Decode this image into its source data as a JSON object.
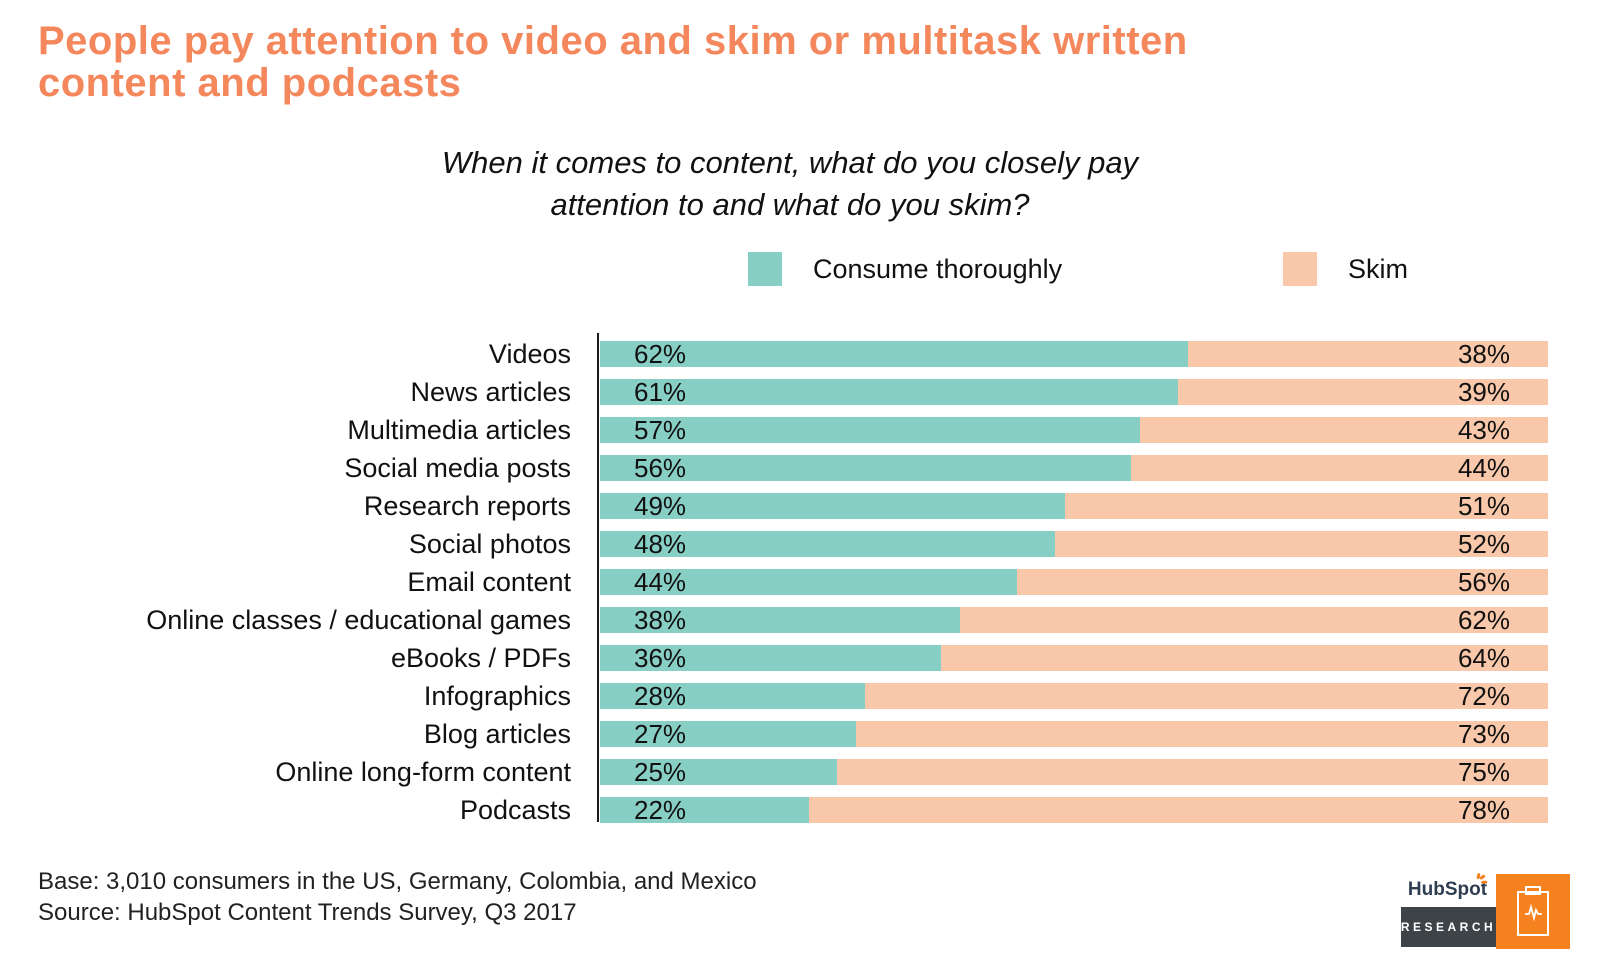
{
  "title": {
    "line1": "People pay attention to video and skim or multitask written",
    "line2": "content and podcasts"
  },
  "subtitle": {
    "line1": "When it comes to content, what do you closely pay",
    "line2": "attention to and what do you skim?"
  },
  "chart_data": {
    "type": "bar",
    "orientation": "horizontal",
    "stacked": true,
    "title": "When it comes to content, what do you closely pay attention to and what do you skim?",
    "value_format": "percent",
    "xlim": [
      0,
      100
    ],
    "legend_position": "top",
    "grid": false,
    "categories": [
      "Videos",
      "News articles",
      "Multimedia articles",
      "Social media posts",
      "Research reports",
      "Social photos",
      "Email content",
      "Online classes / educational games",
      "eBooks / PDFs",
      "Infographics",
      "Blog articles",
      "Online long-form content",
      "Podcasts"
    ],
    "series": [
      {
        "name": "Consume thoroughly",
        "color": "#87CEC5",
        "values": [
          62,
          61,
          57,
          56,
          49,
          48,
          44,
          38,
          36,
          28,
          27,
          25,
          22
        ]
      },
      {
        "name": "Skim",
        "color": "#F9C7A9",
        "values": [
          38,
          39,
          43,
          44,
          51,
          52,
          56,
          62,
          64,
          72,
          73,
          75,
          78
        ]
      }
    ]
  },
  "footer": {
    "base": "Base: 3,010 consumers in the US, Germany, Colombia, and Mexico",
    "source": "Source: HubSpot Content Trends Survey, Q3 2017"
  },
  "logo": {
    "wordmark_pre": "HubSp",
    "wordmark_o": "o",
    "wordmark_post": "t",
    "research_label": "RESEARCH"
  },
  "colors": {
    "title": "#F4875C",
    "consume": "#87CEC5",
    "skim": "#F9C7A9",
    "text": "#111111",
    "logo_orange": "#F5811F",
    "research_bg": "#3E4347",
    "hubspot_navy": "#2E3E50"
  }
}
